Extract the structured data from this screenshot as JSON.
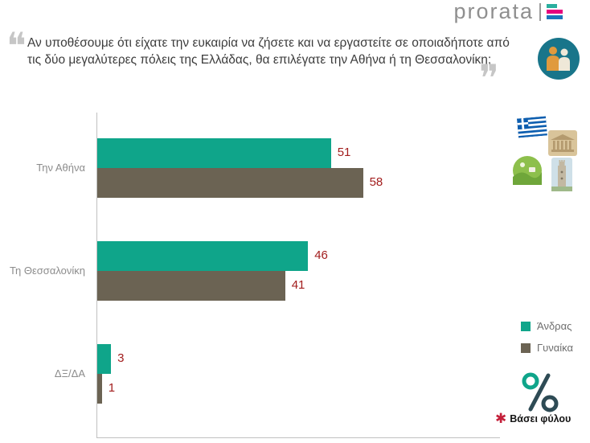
{
  "logo": {
    "text": "prorata"
  },
  "question": {
    "text": "Αν υποθέσουμε ότι είχατε την ευκαιρία να ζήσετε και να εργαστείτε σε οποιαδήποτε από τις δύο μεγαλύτερες πόλεις της Ελλάδας, θα επιλέγατε την Αθήνα ή τη Θεσσαλονίκη;",
    "open_quote": "❝",
    "close_quote": "❞"
  },
  "chart_data": {
    "type": "bar",
    "orientation": "horizontal",
    "title": "",
    "categories": [
      "Την Αθήνα",
      "Τη Θεσσαλονίκη",
      "ΔΞ/ΔΑ"
    ],
    "series": [
      {
        "name": "Άνδρας",
        "color": "#0fa58a",
        "values": [
          51,
          46,
          3
        ]
      },
      {
        "name": "Γυναίκα",
        "color": "#6b6353",
        "values": [
          58,
          41,
          1
        ]
      }
    ],
    "xlim": [
      0,
      100
    ],
    "grid": false,
    "legend_position": "right",
    "value_label_color": "#a21d1d"
  },
  "footnote": {
    "marker": "✱",
    "text": "Βάσει φύλου"
  },
  "colors": {
    "accent_teal": "#0fa58a",
    "accent_brown": "#6b6353",
    "value_red": "#a21d1d",
    "logo_gray": "#8f8f8f",
    "axis_gray": "#c0c0c0"
  },
  "icons": {
    "logo_mark": "prorata-flag-icon",
    "people": "people-in-circle-icon",
    "flag": "greek-flag-icon",
    "acropolis": "acropolis-icon",
    "landscape": "landscape-icon",
    "tower": "white-tower-icon",
    "percent": "percent-icon",
    "footnote_marker": "asterisk-icon"
  }
}
